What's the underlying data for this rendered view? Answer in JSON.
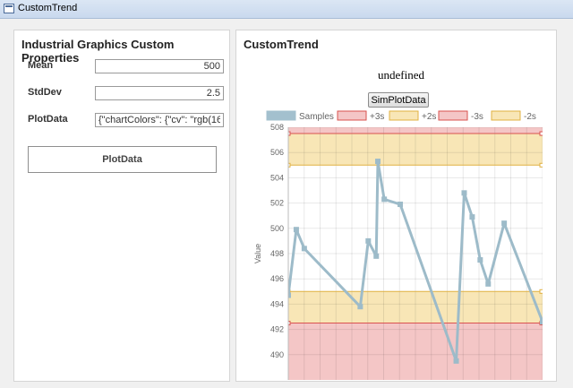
{
  "window": {
    "title": "CustomTrend"
  },
  "properties_panel": {
    "title": "Industrial Graphics Custom Properties",
    "fields": [
      {
        "label": "Mean",
        "value": "500"
      },
      {
        "label": "StdDev",
        "value": "2.5"
      },
      {
        "label": "PlotData",
        "value": "{\"chartColors\": {\"cv\": \"rgb(16..."
      }
    ],
    "button_label": "PlotData"
  },
  "trend_panel": {
    "title": "CustomTrend",
    "status_text": "undefined",
    "sim_button_label": "SimPlotData"
  },
  "chart_data": {
    "type": "line",
    "ylabel": "Value",
    "ylim": [
      488,
      508
    ],
    "yticks": [
      490,
      492,
      494,
      496,
      498,
      500,
      502,
      504,
      506,
      508
    ],
    "legend_position": "top",
    "legend": [
      {
        "name": "Samples",
        "color": "#a3c0ce",
        "border": "#a3c0ce"
      },
      {
        "name": "+3s",
        "color": "#f4c6c6",
        "border": "#d9534f"
      },
      {
        "name": "+2s",
        "color": "#f8e6b6",
        "border": "#e0b040"
      },
      {
        "name": "-3s",
        "color": "#f4c6c6",
        "border": "#d9534f"
      },
      {
        "name": "-2s",
        "color": "#f8e6b6",
        "border": "#e0b040"
      }
    ],
    "bands": {
      "plus3s": 507.5,
      "plus2s": 505.0,
      "minus2s": 495.0,
      "minus3s": 492.5
    },
    "series": [
      {
        "name": "Samples",
        "color": "#9dbbc9",
        "values": [
          494.7,
          499.9,
          498.4,
          493.8,
          499.0,
          497.8,
          505.3,
          502.3,
          501.9,
          489.5,
          502.8,
          500.9,
          497.5,
          495.6,
          500.4,
          492.6
        ]
      }
    ],
    "x_index": [
      0,
      0.5,
      1.0,
      4.5,
      5.0,
      5.5,
      5.6,
      6.0,
      7.0,
      10.5,
      11.0,
      11.5,
      12.0,
      12.5,
      13.5,
      15.9
    ],
    "x_range": [
      0,
      15.9
    ]
  }
}
